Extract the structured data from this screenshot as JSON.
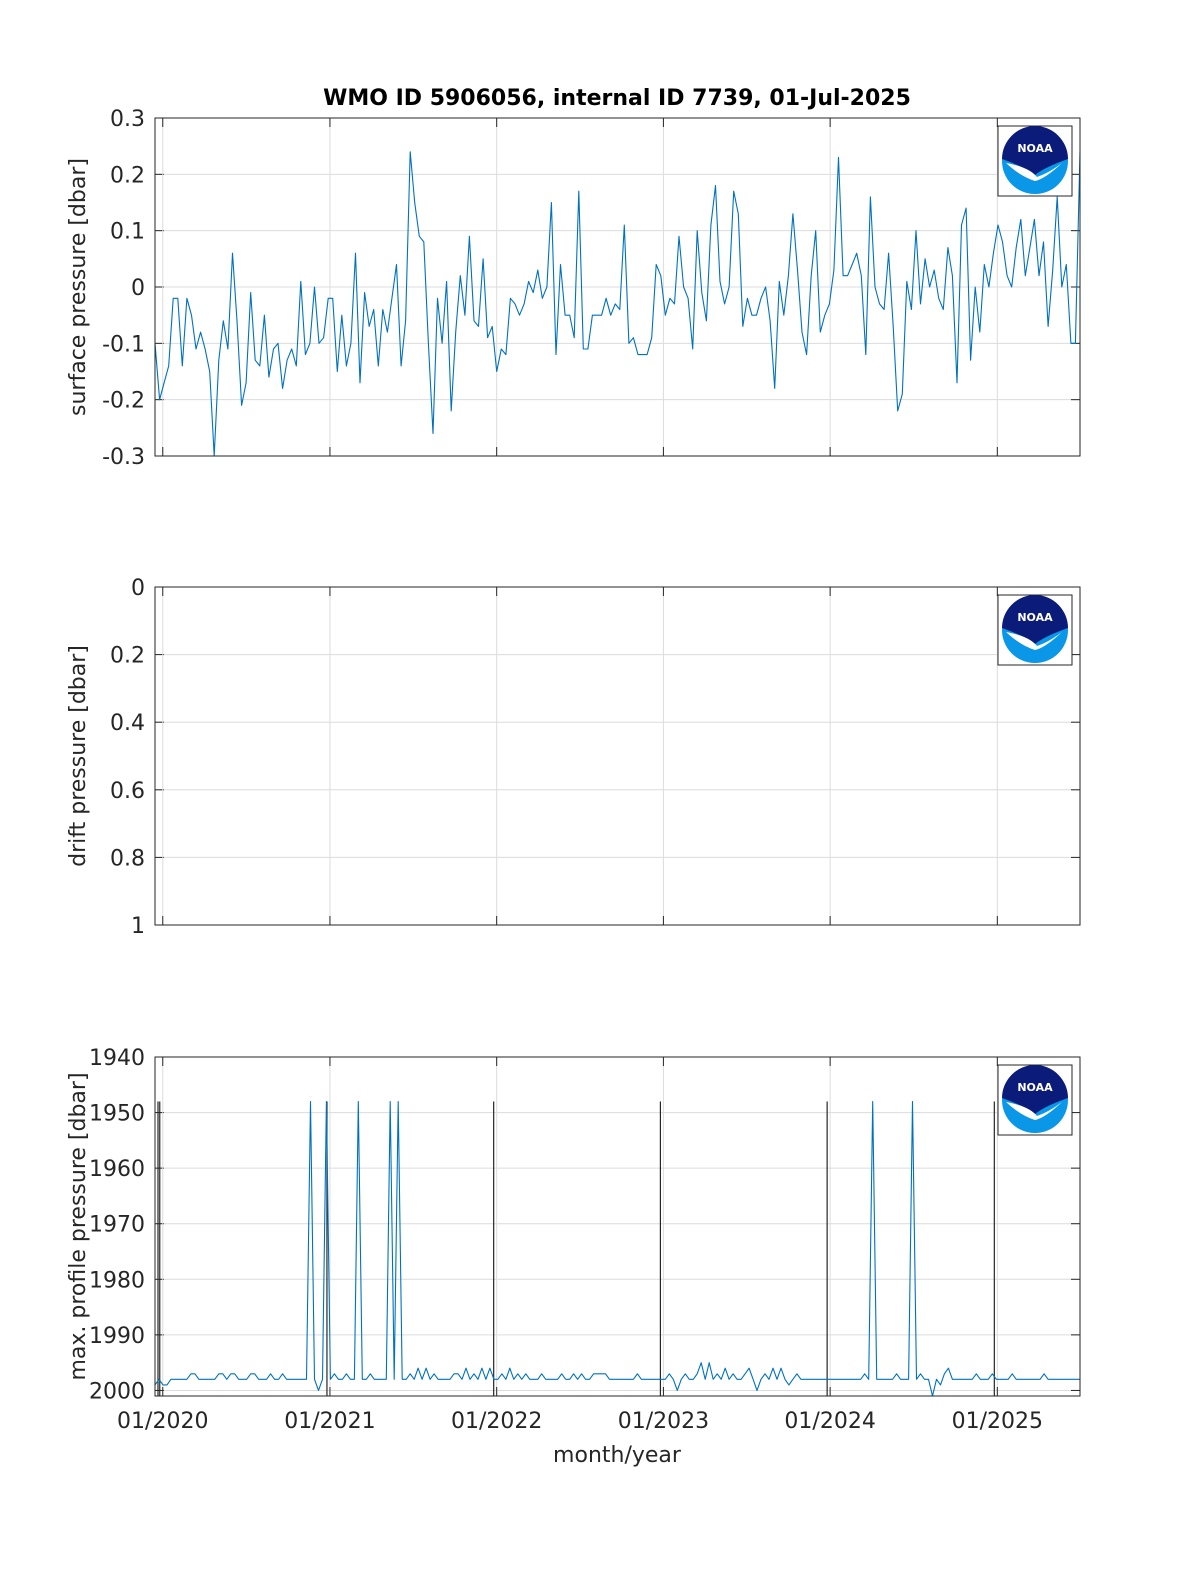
{
  "figure": {
    "title": "WMO ID 5906056, internal ID 7739, 01-Jul-2025",
    "xlabel": "month/year",
    "xticks": [
      "01/2020",
      "01/2021",
      "01/2022",
      "01/2023",
      "01/2024",
      "01/2025"
    ],
    "line_color": "#0072BD",
    "marker_color": "#262626",
    "logo_text": "NOAA"
  },
  "chart_data": [
    {
      "type": "line",
      "ylabel": "surface pressure [dbar]",
      "ylim": [
        -0.3,
        0.3
      ],
      "yticks": [
        "0.3",
        "0.2",
        "0.1",
        "0",
        "-0.1",
        "-0.2",
        "-0.3"
      ],
      "xlim": [
        "2019-12-15",
        "2025-07-01"
      ],
      "grid": true,
      "x_start": "2019-12-15",
      "x_end": "2025-07-01",
      "values": [
        -0.1,
        -0.2,
        -0.17,
        -0.14,
        -0.02,
        -0.02,
        -0.14,
        -0.02,
        -0.05,
        -0.11,
        -0.08,
        -0.11,
        -0.15,
        -0.3,
        -0.13,
        -0.06,
        -0.11,
        0.06,
        -0.06,
        -0.21,
        -0.17,
        -0.01,
        -0.13,
        -0.14,
        -0.05,
        -0.16,
        -0.11,
        -0.1,
        -0.18,
        -0.13,
        -0.11,
        -0.14,
        0.01,
        -0.12,
        -0.1,
        0.0,
        -0.1,
        -0.09,
        -0.02,
        -0.02,
        -0.15,
        -0.05,
        -0.14,
        -0.1,
        0.06,
        -0.17,
        -0.01,
        -0.07,
        -0.04,
        -0.14,
        -0.04,
        -0.08,
        -0.02,
        0.04,
        -0.14,
        -0.06,
        0.24,
        0.15,
        0.09,
        0.08,
        -0.1,
        -0.26,
        -0.02,
        -0.1,
        0.01,
        -0.22,
        -0.08,
        0.02,
        -0.05,
        0.09,
        -0.06,
        -0.07,
        0.05,
        -0.09,
        -0.07,
        -0.15,
        -0.11,
        -0.12,
        -0.02,
        -0.03,
        -0.05,
        -0.03,
        0.01,
        -0.01,
        0.03,
        -0.02,
        0.0,
        0.15,
        -0.12,
        0.04,
        -0.05,
        -0.05,
        -0.09,
        0.17,
        -0.11,
        -0.11,
        -0.05,
        -0.05,
        -0.05,
        -0.02,
        -0.05,
        -0.03,
        -0.04,
        0.11,
        -0.1,
        -0.09,
        -0.12,
        -0.12,
        -0.12,
        -0.09,
        0.04,
        0.02,
        -0.05,
        -0.02,
        -0.03,
        0.09,
        0.0,
        -0.02,
        -0.11,
        0.1,
        -0.01,
        -0.06,
        0.11,
        0.18,
        0.01,
        -0.03,
        0.0,
        0.17,
        0.13,
        -0.07,
        -0.02,
        -0.05,
        -0.05,
        -0.02,
        0.0,
        -0.06,
        -0.18,
        0.01,
        -0.05,
        0.02,
        0.13,
        0.03,
        -0.08,
        -0.12,
        0.02,
        0.1,
        -0.08,
        -0.05,
        -0.03,
        0.03,
        0.23,
        0.02,
        0.02,
        0.04,
        0.06,
        0.02,
        -0.12,
        0.16,
        0.0,
        -0.03,
        -0.04,
        0.06,
        -0.07,
        -0.22,
        -0.19,
        0.01,
        -0.04,
        0.1,
        -0.03,
        0.05,
        0.0,
        0.03,
        -0.02,
        -0.04,
        0.07,
        0.02,
        -0.17,
        0.11,
        0.14,
        -0.13,
        0.0,
        -0.08,
        0.04,
        0.0,
        0.06,
        0.11,
        0.08,
        0.02,
        0.0,
        0.07,
        0.12,
        0.02,
        0.07,
        0.12,
        0.02,
        0.08,
        -0.07,
        0.03,
        0.16,
        0.0,
        0.04,
        -0.1,
        -0.1,
        0.24
      ]
    },
    {
      "type": "line",
      "ylabel": "drift pressure [dbar]",
      "ylim": [
        0,
        1
      ],
      "yticks": [
        "0",
        "0.2",
        "0.4",
        "0.6",
        "0.8",
        "1"
      ],
      "reversed": true,
      "grid": true,
      "values": []
    },
    {
      "type": "line",
      "ylabel": "max. profile pressure [dbar]",
      "ylim": [
        1940,
        2001
      ],
      "yticks": [
        "1940",
        "1950",
        "1960",
        "1970",
        "1980",
        "1990",
        "2000"
      ],
      "reversed": true,
      "grid": true,
      "x_start": "2019-12-15",
      "x_end": "2025-07-01",
      "values": [
        1999,
        1998,
        1999,
        1999,
        1998,
        1998,
        1998,
        1998,
        1998,
        1997,
        1997,
        1998,
        1998,
        1998,
        1998,
        1998,
        1997,
        1997,
        1998,
        1997,
        1997,
        1998,
        1998,
        1998,
        1997,
        1997,
        1998,
        1998,
        1998,
        1997,
        1998,
        1998,
        1997,
        1998,
        1998,
        1998,
        1998,
        1998,
        1998,
        1948,
        1998,
        2000,
        1998,
        1948,
        1998,
        1997,
        1998,
        1998,
        1997,
        1998,
        1998,
        1948,
        1998,
        1998,
        1997,
        1998,
        1998,
        1998,
        1998,
        1948,
        1998,
        1948,
        1998,
        1998,
        1997,
        1998,
        1996,
        1998,
        1996,
        1998,
        1997,
        1998,
        1998,
        1998,
        1998,
        1997,
        1997,
        1998,
        1996,
        1998,
        1997,
        1998,
        1996,
        1998,
        1996,
        1998,
        1998,
        1997,
        1998,
        1996,
        1998,
        1997,
        1998,
        1997,
        1998,
        1998,
        1998,
        1997,
        1998,
        1998,
        1998,
        1998,
        1997,
        1998,
        1998,
        1997,
        1998,
        1997,
        1998,
        1998,
        1997,
        1997,
        1997,
        1997,
        1998,
        1998,
        1998,
        1998,
        1998,
        1998,
        1998,
        1997,
        1998,
        1998,
        1998,
        1998,
        1998,
        1998,
        1998,
        1997,
        1998,
        2000,
        1998,
        1997,
        1998,
        1998,
        1997,
        1995,
        1998,
        1995,
        1998,
        1997,
        1998,
        1996,
        1998,
        1997,
        1998,
        1998,
        1997,
        1996,
        1998,
        2000,
        1998,
        1997,
        1998,
        1996,
        1998,
        1996,
        1998,
        1999,
        1998,
        1997,
        1998,
        1998,
        1998,
        1998,
        1998,
        1998,
        1998,
        1998,
        1998,
        1998,
        1998,
        1998,
        1998,
        1998,
        1998,
        1998,
        1997,
        1998,
        1948,
        1998,
        1998,
        1998,
        1998,
        1998,
        1997,
        1998,
        1998,
        1998,
        1948,
        1998,
        1997,
        1998,
        1998,
        2001,
        1998,
        1999,
        1997,
        1996,
        1998,
        1998,
        1998,
        1998,
        1998,
        1998,
        1997,
        1998,
        1998,
        1998,
        1997,
        1998,
        1998,
        1998,
        1998,
        1997,
        1998,
        1998,
        1998,
        1998,
        1998,
        1998,
        1998,
        1997,
        1998,
        1998,
        1998,
        1998,
        1998,
        1998,
        1998,
        1998,
        1998
      ]
    }
  ]
}
